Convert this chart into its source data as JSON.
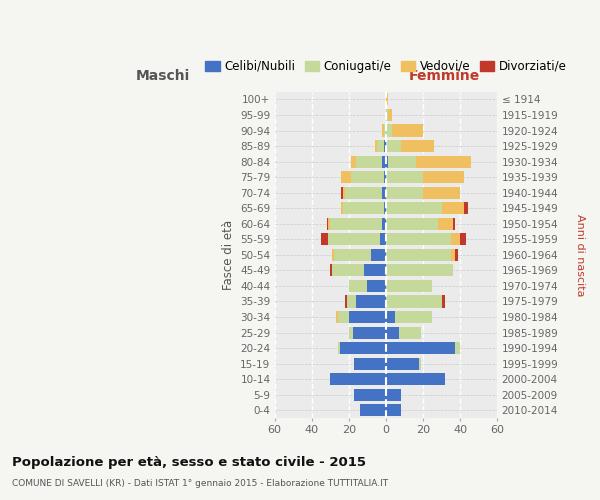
{
  "age_groups": [
    "0-4",
    "5-9",
    "10-14",
    "15-19",
    "20-24",
    "25-29",
    "30-34",
    "35-39",
    "40-44",
    "45-49",
    "50-54",
    "55-59",
    "60-64",
    "65-69",
    "70-74",
    "75-79",
    "80-84",
    "85-89",
    "90-94",
    "95-99",
    "100+"
  ],
  "birth_years": [
    "2010-2014",
    "2005-2009",
    "2000-2004",
    "1995-1999",
    "1990-1994",
    "1985-1989",
    "1980-1984",
    "1975-1979",
    "1970-1974",
    "1965-1969",
    "1960-1964",
    "1955-1959",
    "1950-1954",
    "1945-1949",
    "1940-1944",
    "1935-1939",
    "1930-1934",
    "1925-1929",
    "1920-1924",
    "1915-1919",
    "≤ 1914"
  ],
  "maschi_celibi": [
    14,
    17,
    30,
    17,
    25,
    18,
    20,
    16,
    10,
    12,
    8,
    3,
    2,
    1,
    2,
    1,
    2,
    1,
    0,
    0,
    0
  ],
  "maschi_coniugati": [
    0,
    0,
    0,
    0,
    1,
    2,
    6,
    5,
    10,
    17,
    20,
    28,
    28,
    22,
    20,
    18,
    14,
    4,
    1,
    0,
    0
  ],
  "maschi_vedovi": [
    0,
    0,
    0,
    0,
    0,
    0,
    1,
    0,
    0,
    0,
    1,
    0,
    1,
    1,
    1,
    5,
    3,
    1,
    1,
    0,
    0
  ],
  "maschi_divorziati": [
    0,
    0,
    0,
    0,
    0,
    0,
    0,
    1,
    0,
    1,
    0,
    4,
    1,
    0,
    1,
    0,
    0,
    0,
    0,
    0,
    0
  ],
  "femmine_celibi": [
    8,
    8,
    32,
    18,
    37,
    7,
    5,
    0,
    0,
    0,
    0,
    0,
    0,
    0,
    0,
    0,
    1,
    0,
    0,
    0,
    0
  ],
  "femmine_coniugati": [
    0,
    0,
    0,
    1,
    3,
    12,
    20,
    30,
    25,
    36,
    35,
    35,
    28,
    30,
    20,
    20,
    15,
    8,
    3,
    1,
    0
  ],
  "femmine_vedovi": [
    0,
    0,
    0,
    0,
    0,
    0,
    0,
    0,
    0,
    0,
    2,
    5,
    8,
    12,
    20,
    22,
    30,
    18,
    17,
    2,
    1
  ],
  "femmine_divorziati": [
    0,
    0,
    0,
    0,
    0,
    0,
    0,
    2,
    0,
    0,
    2,
    3,
    1,
    2,
    0,
    0,
    0,
    0,
    0,
    0,
    0
  ],
  "color_celibi": "#4472c4",
  "color_coniugati": "#c5d99b",
  "color_vedovi": "#f0c060",
  "color_divorziati": "#c0392b",
  "title": "Popolazione per età, sesso e stato civile - 2015",
  "subtitle": "COMUNE DI SAVELLI (KR) - Dati ISTAT 1° gennaio 2015 - Elaborazione TUTTITALIA.IT",
  "ylabel_left": "Fasce di età",
  "ylabel_right": "Anni di nascita",
  "xlabel_maschi": "Maschi",
  "xlabel_femmine": "Femmine",
  "xlim": 60,
  "legend_labels": [
    "Celibi/Nubili",
    "Coniugati/e",
    "Vedovi/e",
    "Divorziati/e"
  ],
  "bg_color": "#f5f5f2",
  "plot_bg_color": "#ebebeb"
}
